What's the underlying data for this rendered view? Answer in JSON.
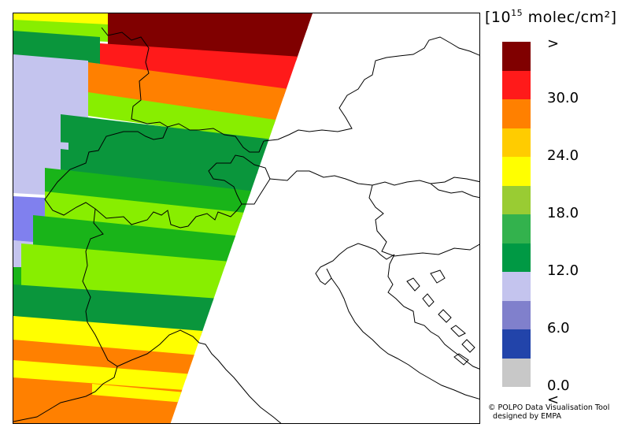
{
  "legend": {
    "title_prefix": "[10",
    "title_exponent": "15",
    "title_suffix": " molec/cm²]",
    "colors": [
      "#800000",
      "#ff1a1a",
      "#ff8000",
      "#ffcc00",
      "#ffff00",
      "#99cc33",
      "#33b24d",
      "#009944",
      "#c4c4ee",
      "#8080cc",
      "#2244aa",
      "#c8c8c8"
    ],
    "labels": [
      ">",
      "30.0",
      "24.0",
      "18.0",
      "12.0",
      "6.0",
      "0.0",
      "<"
    ]
  },
  "credit": {
    "line1": "© POLPO Data Visualisation Tool",
    "line2": "designed by EMPA"
  },
  "swath_colors": {
    "darkred": "#800000",
    "red": "#ff1a1a",
    "orange": "#ff8000",
    "yellow": "#ffff00",
    "lightgreen": "#88ee00",
    "green": "#19b419",
    "darkgreen": "#0a963c",
    "lavender": "#c4c4ee",
    "periwinkle": "#8080ee"
  }
}
